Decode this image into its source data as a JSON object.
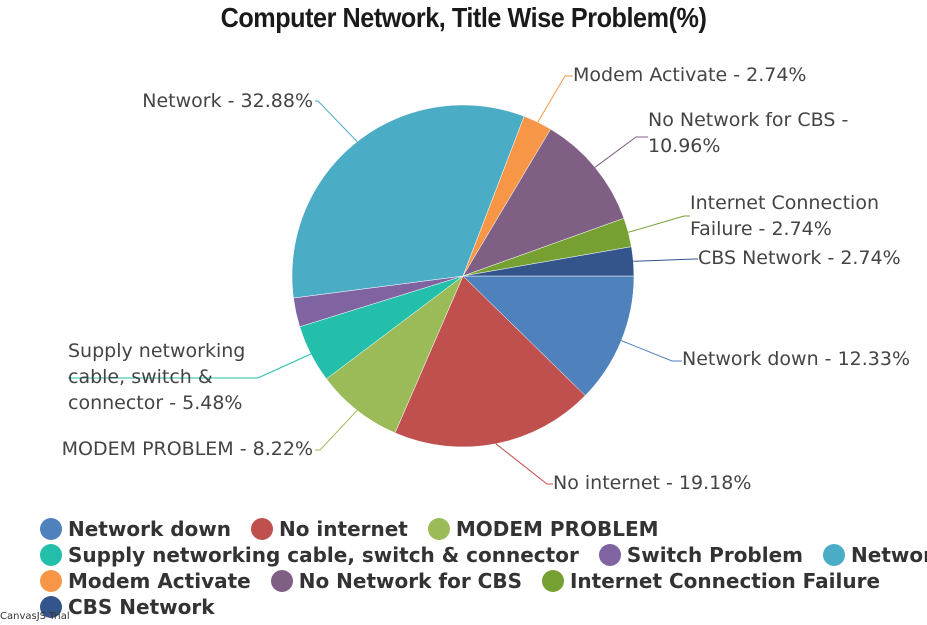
{
  "watermark": "CanvasJS Trial",
  "chart_data": {
    "type": "pie",
    "title": "Computer Network, Title Wise Problem(%)",
    "slices": [
      {
        "name": "Network down",
        "value": 12.33,
        "label_lines": [
          "Network down - 12.33%"
        ],
        "color": "#4F81BC"
      },
      {
        "name": "No internet",
        "value": 19.18,
        "label_lines": [
          "No internet - 19.18%"
        ],
        "color": "#C0504E"
      },
      {
        "name": "MODEM PROBLEM",
        "value": 8.22,
        "label_lines": [
          "MODEM PROBLEM - 8.22%"
        ],
        "color": "#9BBB58"
      },
      {
        "name": "Supply networking cable, switch & connector",
        "value": 5.48,
        "label_lines": [
          "Supply networking",
          "cable, switch &",
          "connector - 5.48%"
        ],
        "color": "#23BFAA"
      },
      {
        "name": "Switch Problem",
        "value": 2.74,
        "label_lines": [],
        "color": "#8064A1"
      },
      {
        "name": "Network",
        "value": 32.88,
        "label_lines": [
          "Network  - 32.88%"
        ],
        "color": "#4AACC5"
      },
      {
        "name": "Modem Activate",
        "value": 2.74,
        "label_lines": [
          "Modem Activate - 2.74%"
        ],
        "color": "#F79647"
      },
      {
        "name": "No Network for CBS",
        "value": 10.96,
        "label_lines": [
          "No Network for CBS  -",
          "10.96%"
        ],
        "color": "#7F6084"
      },
      {
        "name": "Internet Connection Failure",
        "value": 2.74,
        "label_lines": [
          "Internet Connection",
          "Failure - 2.74%"
        ],
        "color": "#77A033"
      },
      {
        "name": "CBS Network",
        "value": 2.74,
        "label_lines": [
          "CBS Network - 2.74%"
        ],
        "color": "#33558B"
      }
    ],
    "legend": {
      "placement": "bottom",
      "rows": [
        [
          "Network down",
          "No internet",
          "MODEM PROBLEM"
        ],
        [
          "Supply networking cable, switch & connector",
          "Switch Problem",
          "Network"
        ],
        [
          "Modem Activate",
          "No Network for CBS",
          "Internet Connection Failure"
        ],
        [
          "CBS Network"
        ]
      ]
    }
  }
}
